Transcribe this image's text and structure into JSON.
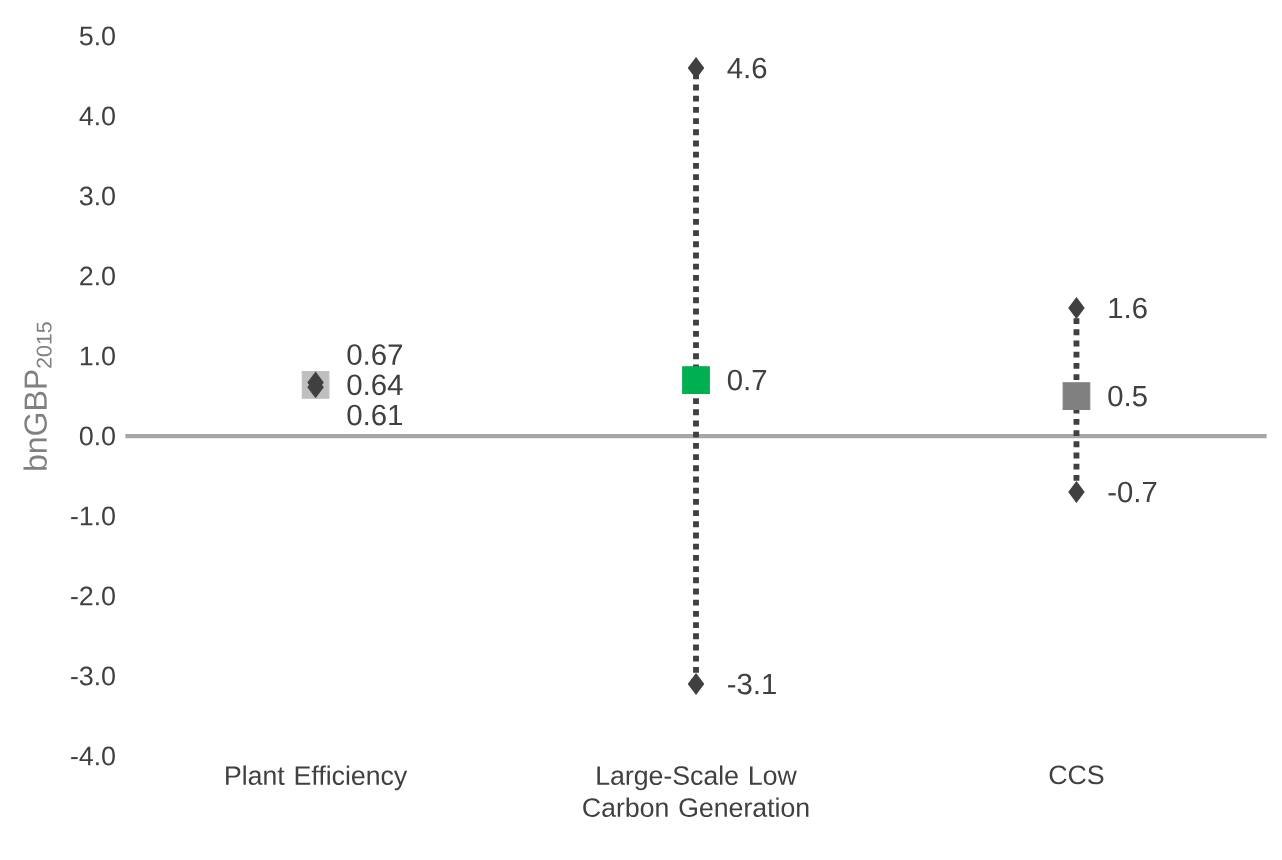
{
  "chart_data": {
    "type": "scatter",
    "ylabel": "bnGBP$_{2015}$",
    "categories": [
      "Plant Efficiency",
      "Large-Scale Low Carbon Generation",
      "CCS"
    ],
    "series": [
      {
        "marker": "square",
        "colors": [
          "#bfbfbf",
          "#00b050",
          "#808080"
        ],
        "values": [
          0.64,
          0.7,
          0.5
        ]
      },
      {
        "marker": "diamond",
        "color": "#404040",
        "values": [
          0.67,
          4.6,
          1.6
        ]
      },
      {
        "marker": "diamond",
        "color": "#404040",
        "values": [
          0.61,
          -3.1,
          -0.7
        ],
        "line_style": "dotted"
      }
    ],
    "data_labels": true,
    "ylim": [
      -4,
      5
    ],
    "yticks": [
      {
        "value": -4,
        "label": "-4.0"
      },
      {
        "value": -3,
        "label": "-3.0"
      },
      {
        "value": -2,
        "label": "-2.0"
      },
      {
        "value": -1,
        "label": "-1.0"
      },
      {
        "value": 0,
        "label": "0.0"
      },
      {
        "value": 1,
        "label": "1.0"
      },
      {
        "value": 2,
        "label": "2.0"
      },
      {
        "value": 3,
        "label": "3.0"
      },
      {
        "value": 4,
        "label": "4.0"
      },
      {
        "value": 5,
        "label": "5.0"
      }
    ]
  }
}
